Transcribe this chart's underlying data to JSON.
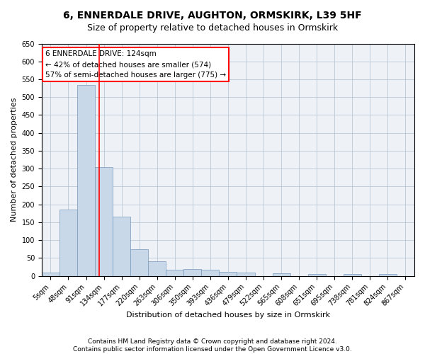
{
  "title1": "6, ENNERDALE DRIVE, AUGHTON, ORMSKIRK, L39 5HF",
  "title2": "Size of property relative to detached houses in Ormskirk",
  "xlabel": "Distribution of detached houses by size in Ormskirk",
  "ylabel": "Number of detached properties",
  "bar_labels": [
    "5sqm",
    "48sqm",
    "91sqm",
    "134sqm",
    "177sqm",
    "220sqm",
    "263sqm",
    "306sqm",
    "350sqm",
    "393sqm",
    "436sqm",
    "479sqm",
    "522sqm",
    "565sqm",
    "608sqm",
    "651sqm",
    "695sqm",
    "738sqm",
    "781sqm",
    "824sqm",
    "867sqm"
  ],
  "bar_values": [
    10,
    185,
    535,
    305,
    165,
    75,
    42,
    17,
    20,
    17,
    12,
    10,
    0,
    8,
    0,
    5,
    0,
    5,
    0,
    5,
    0
  ],
  "bar_color": "#c8d8e8",
  "bar_edge_color": "#7799bb",
  "vline_x": 2.75,
  "vline_color": "red",
  "annotation_text": "6 ENNERDALE DRIVE: 124sqm\n← 42% of detached houses are smaller (574)\n57% of semi-detached houses are larger (775) →",
  "annotation_box_color": "white",
  "annotation_box_edge": "red",
  "ylim": [
    0,
    650
  ],
  "yticks": [
    0,
    50,
    100,
    150,
    200,
    250,
    300,
    350,
    400,
    450,
    500,
    550,
    600,
    650
  ],
  "footnote1": "Contains HM Land Registry data © Crown copyright and database right 2024.",
  "footnote2": "Contains public sector information licensed under the Open Government Licence v3.0.",
  "title1_fontsize": 10,
  "title2_fontsize": 9,
  "axis_label_fontsize": 8,
  "tick_fontsize": 7,
  "footnote_fontsize": 6.5,
  "annotation_fontsize": 7.5,
  "background_color": "#eef2f7",
  "grid_color": "#b0c0d0"
}
